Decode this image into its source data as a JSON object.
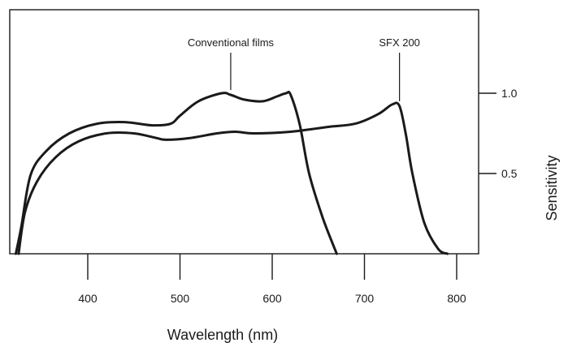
{
  "chart_data": {
    "type": "line",
    "xlabel": "Wavelength (nm)",
    "ylabel": "Sensitivity",
    "x_ticks": [
      400,
      500,
      600,
      700,
      800
    ],
    "y_ticks": [
      0.5,
      1.0
    ],
    "y_tick_labels": [
      "0.5",
      "1.0"
    ],
    "xlim": [
      318,
      800
    ],
    "ylim": [
      0,
      1.12
    ],
    "grid": false,
    "y_axis_side": "right",
    "series": [
      {
        "name": "Conventional films",
        "x": [
          322,
          328,
          338,
          355,
          380,
          410,
          440,
          470,
          490,
          500,
          520,
          545,
          555,
          570,
          590,
          605,
          615,
          620,
          630,
          640,
          655,
          670
        ],
        "y": [
          0,
          0.17,
          0.49,
          0.64,
          0.75,
          0.81,
          0.82,
          0.8,
          0.81,
          0.86,
          0.95,
          1.0,
          0.99,
          0.96,
          0.95,
          0.98,
          1.0,
          0.99,
          0.8,
          0.5,
          0.22,
          0.0
        ]
      },
      {
        "name": "SFX 200",
        "x": [
          325,
          332,
          345,
          365,
          390,
          420,
          450,
          475,
          485,
          510,
          540,
          560,
          580,
          620,
          660,
          690,
          715,
          730,
          738,
          745,
          752,
          765,
          780,
          790
        ],
        "y": [
          0,
          0.26,
          0.45,
          0.6,
          0.7,
          0.75,
          0.75,
          0.72,
          0.71,
          0.72,
          0.75,
          0.76,
          0.75,
          0.76,
          0.79,
          0.81,
          0.87,
          0.93,
          0.92,
          0.74,
          0.5,
          0.19,
          0.03,
          0.0
        ]
      }
    ],
    "annotations": [
      {
        "text": "Conventional films",
        "x": 555,
        "y": 1.0
      },
      {
        "text": "SFX 200",
        "x": 738,
        "y": 0.93
      }
    ]
  }
}
